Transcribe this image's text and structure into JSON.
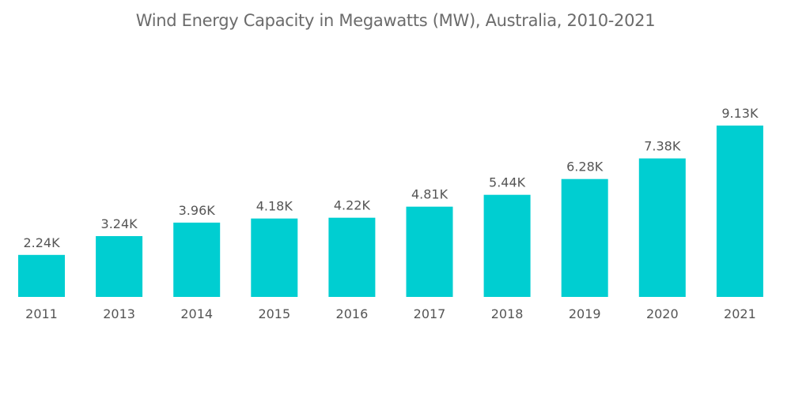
{
  "chart_data": {
    "type": "bar",
    "title": "Wind Energy Capacity in Megawatts (MW), Australia, 2010-2021",
    "xlabel": "",
    "ylabel": "",
    "categories": [
      "2011",
      "2013",
      "2014",
      "2015",
      "2016",
      "2017",
      "2018",
      "2019",
      "2020",
      "2021"
    ],
    "values": [
      2240,
      3240,
      3960,
      4180,
      4220,
      4810,
      5440,
      6280,
      7380,
      9130
    ],
    "data_labels": [
      "2.24K",
      "3.24K",
      "3.96K",
      "4.18K",
      "4.22K",
      "4.81K",
      "5.44K",
      "6.28K",
      "7.38K",
      "9.13K"
    ],
    "ylim": [
      0,
      9130
    ],
    "grid": false,
    "legend": "none",
    "bar_color": "#00CED1"
  }
}
